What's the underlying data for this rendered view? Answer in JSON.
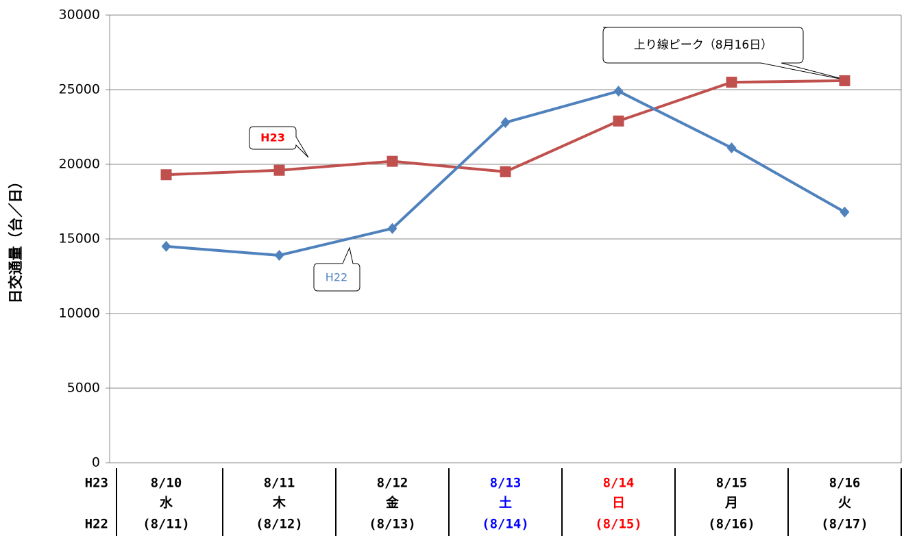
{
  "chart_data": {
    "type": "line",
    "y_label": "日交通量（台／日）",
    "row_labels": [
      "H23",
      "H22"
    ],
    "categories": [
      "8/10",
      "8/11",
      "8/12",
      "8/13",
      "8/14",
      "8/15",
      "8/16"
    ],
    "weekdays": [
      "水",
      "木",
      "金",
      "土",
      "日",
      "月",
      "火"
    ],
    "h22_dates": [
      "(8/11)",
      "(8/12)",
      "(8/13)",
      "(8/14)",
      "(8/15)",
      "(8/16)",
      "(8/17)"
    ],
    "category_colors": [
      "#000000",
      "#000000",
      "#000000",
      "#0000ff",
      "#ff0000",
      "#000000",
      "#000000"
    ],
    "series": [
      {
        "name": "H23",
        "color": "#c0504d",
        "marker": "square",
        "values": [
          19300,
          19600,
          20200,
          19500,
          22900,
          25500,
          25600
        ]
      },
      {
        "name": "H22",
        "color": "#4f81bd",
        "marker": "diamond",
        "values": [
          14500,
          13900,
          15700,
          22800,
          24900,
          21100,
          16800
        ]
      }
    ],
    "annotations": [
      "上り線ピーク（8月16日）"
    ],
    "ylim": [
      0,
      30000
    ],
    "yticks": [
      0,
      5000,
      10000,
      15000,
      20000,
      25000,
      30000
    ],
    "grid": true
  }
}
